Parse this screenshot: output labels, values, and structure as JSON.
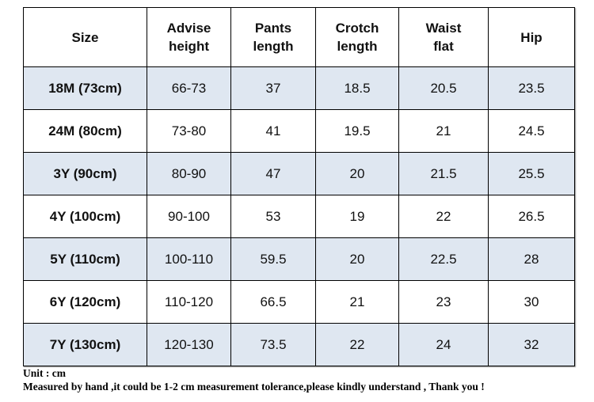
{
  "table": {
    "header": [
      "Size",
      "Advise\nheight",
      "Pants\nlength",
      "Crotch\nlength",
      "Waist\nflat",
      "Hip"
    ],
    "rows": [
      [
        "18M (73cm)",
        "66-73",
        "37",
        "18.5",
        "20.5",
        "23.5"
      ],
      [
        "24M (80cm)",
        "73-80",
        "41",
        "19.5",
        "21",
        "24.5"
      ],
      [
        "3Y (90cm)",
        "80-90",
        "47",
        "20",
        "21.5",
        "25.5"
      ],
      [
        "4Y (100cm)",
        "90-100",
        "53",
        "19",
        "22",
        "26.5"
      ],
      [
        "5Y (110cm)",
        "100-110",
        "59.5",
        "20",
        "22.5",
        "28"
      ],
      [
        "6Y (120cm)",
        "110-120",
        "66.5",
        "21",
        "23",
        "30"
      ],
      [
        "7Y (130cm)",
        "120-130",
        "73.5",
        "22",
        "24",
        "32"
      ]
    ]
  },
  "notes": [
    "Unit : cm",
    "Measured by hand ,it could be 1-2 cm measurement tolerance,please kindly understand , Thank you !"
  ]
}
